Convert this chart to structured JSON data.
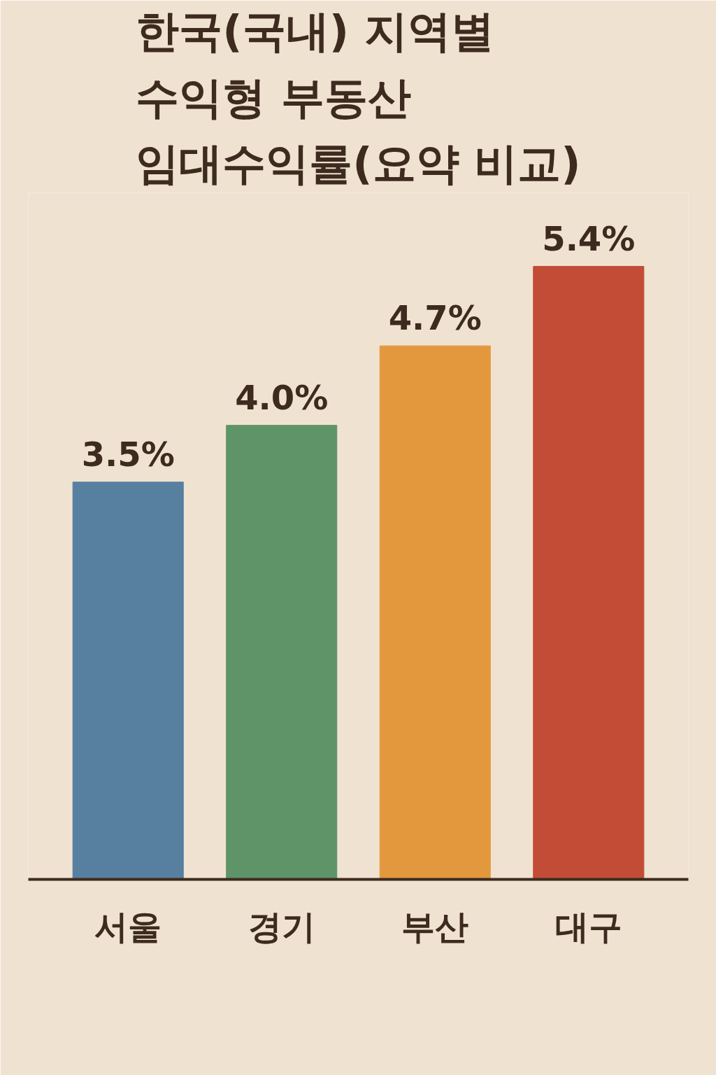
{
  "chart_data": {
    "type": "bar",
    "title": "한국(국내) 지역별\n수익형 부동산\n임대수익률(요약 비교)",
    "categories": [
      "서울",
      "경기",
      "부산",
      "대구"
    ],
    "values": [
      3.5,
      4.0,
      4.7,
      5.4
    ],
    "colors": [
      "#577fa0",
      "#5e9467",
      "#e4983e",
      "#c24c35"
    ],
    "value_labels": [
      "3.5%",
      "4.0%",
      "4.7%",
      "5.4%"
    ],
    "grid": false
  }
}
